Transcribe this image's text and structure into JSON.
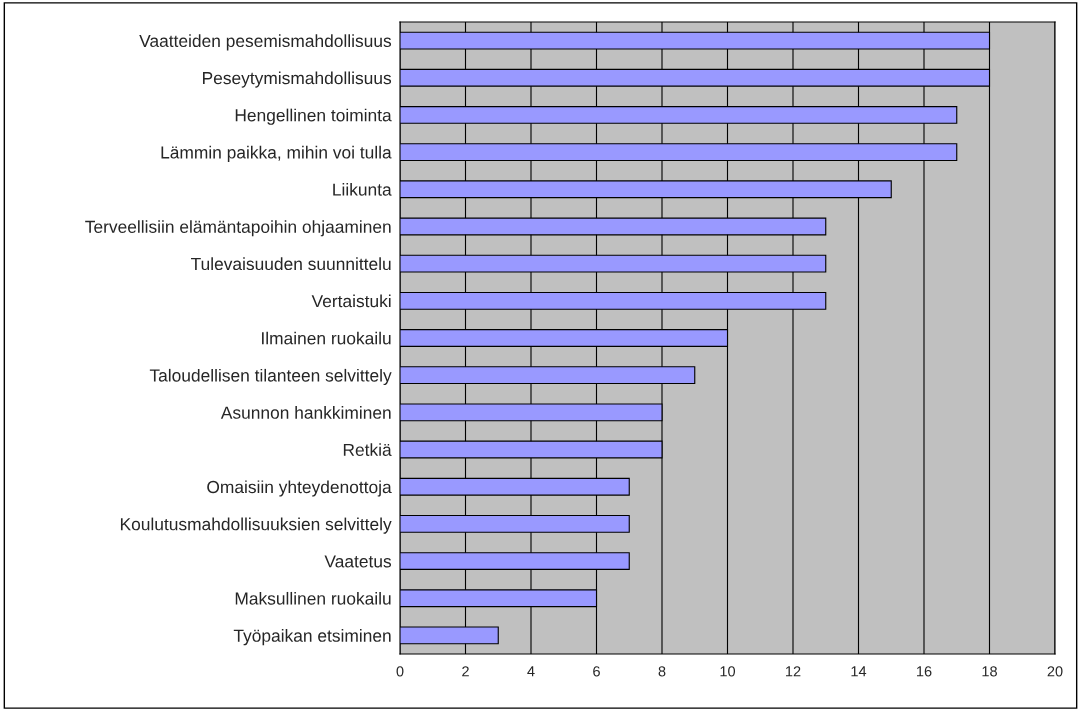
{
  "chart_data": {
    "type": "bar",
    "orientation": "horizontal",
    "categories": [
      "Vaatteiden pesemismahdollisuus",
      "Peseytymismahdollisuus",
      "Hengellinen toiminta",
      "Lämmin paikka, mihin voi tulla",
      "Liikunta",
      "Terveellisiin elämäntapoihin ohjaaminen",
      "Tulevaisuuden suunnittelu",
      "Vertaistuki",
      "Ilmainen ruokailu",
      "Taloudellisen tilanteen selvittely",
      "Asunnon hankkiminen",
      "Retkiä",
      "Omaisiin yhteydenottoja",
      "Koulutusmahdollisuuksien selvittely",
      "Vaatetus",
      "Maksullinen ruokailu",
      "Työpaikan etsiminen"
    ],
    "values": [
      18,
      18,
      17,
      17,
      15,
      13,
      13,
      13,
      10,
      9,
      8,
      8,
      7,
      7,
      7,
      6,
      3
    ],
    "color": "#9999ff",
    "xlim": [
      0,
      20
    ],
    "xticks": [
      0,
      2,
      4,
      6,
      8,
      10,
      12,
      14,
      16,
      18,
      20
    ],
    "grid": "x",
    "legend": false
  }
}
